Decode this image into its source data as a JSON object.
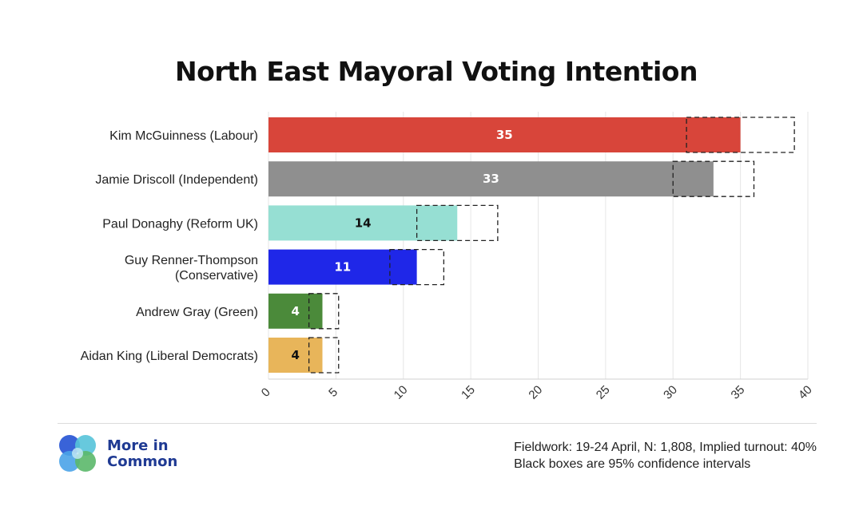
{
  "chart_data": {
    "type": "bar",
    "orientation": "horizontal",
    "title": "North East Mayoral Voting Intention",
    "categories": [
      [
        "Kim McGuinness (Labour)"
      ],
      [
        "Jamie Driscoll (Independent)"
      ],
      [
        "Paul Donaghy (Reform UK)"
      ],
      [
        "Guy Renner-Thompson",
        "(Conservative)"
      ],
      [
        "Andrew Gray (Green)"
      ],
      [
        "Aidan King (Liberal Democrats)"
      ]
    ],
    "values": [
      35,
      33,
      14,
      11,
      4,
      4
    ],
    "confidence_intervals": [
      [
        31,
        39
      ],
      [
        30,
        36
      ],
      [
        11,
        17
      ],
      [
        9,
        13
      ],
      [
        3,
        5.2
      ],
      [
        3,
        5.2
      ]
    ],
    "colors": [
      "#d8453a",
      "#8f8f8f",
      "#96dfd3",
      "#1f27e8",
      "#4b8a3a",
      "#e8b55a"
    ],
    "label_colors": [
      "#ffffff",
      "#ffffff",
      "#111111",
      "#ffffff",
      "#ffffff",
      "#111111"
    ],
    "xlim": [
      0,
      40
    ],
    "xticks": [
      0,
      5,
      10,
      15,
      20,
      25,
      30,
      35,
      40
    ],
    "grid": true,
    "xlabel": "",
    "ylabel": ""
  },
  "footer": {
    "brand_line1": "More in",
    "brand_line2": "Common",
    "note_line1": "Fieldwork: 19-24 April, N: 1,808, Implied turnout: 40%",
    "note_line2": "Black boxes are 95% confidence intervals"
  }
}
